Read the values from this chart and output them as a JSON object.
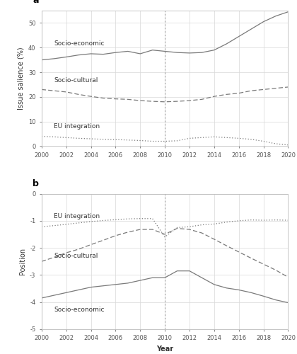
{
  "years": [
    2000,
    2001,
    2002,
    2003,
    2004,
    2005,
    2006,
    2007,
    2008,
    2009,
    2010,
    2011,
    2012,
    2013,
    2014,
    2015,
    2016,
    2017,
    2018,
    2019,
    2020
  ],
  "panel_a": {
    "socio_economic": [
      35.0,
      35.5,
      36.2,
      37.0,
      37.5,
      37.3,
      38.0,
      38.5,
      37.5,
      39.0,
      38.5,
      38.0,
      37.8,
      38.0,
      39.0,
      41.5,
      44.5,
      47.5,
      50.5,
      52.8,
      54.5
    ],
    "socio_cultural": [
      23.0,
      22.5,
      22.0,
      21.0,
      20.2,
      19.5,
      19.2,
      19.0,
      18.5,
      18.2,
      18.0,
      18.2,
      18.5,
      19.0,
      20.2,
      21.0,
      21.5,
      22.5,
      23.0,
      23.5,
      24.0
    ],
    "eu_integration": [
      4.0,
      3.8,
      3.5,
      3.2,
      3.0,
      2.8,
      2.7,
      2.5,
      2.3,
      2.0,
      2.0,
      2.2,
      3.2,
      3.5,
      3.8,
      3.5,
      3.2,
      2.8,
      2.0,
      1.0,
      0.5
    ]
  },
  "panel_b": {
    "socio_economic": [
      -3.85,
      -3.75,
      -3.65,
      -3.55,
      -3.45,
      -3.4,
      -3.35,
      -3.3,
      -3.2,
      -3.1,
      -3.1,
      -2.85,
      -2.85,
      -3.1,
      -3.35,
      -3.48,
      -3.55,
      -3.65,
      -3.78,
      -3.92,
      -4.02
    ],
    "socio_cultural": [
      -2.5,
      -2.35,
      -2.18,
      -2.05,
      -1.88,
      -1.72,
      -1.55,
      -1.42,
      -1.32,
      -1.32,
      -1.5,
      -1.28,
      -1.32,
      -1.45,
      -1.68,
      -1.92,
      -2.15,
      -2.38,
      -2.6,
      -2.82,
      -3.08
    ],
    "eu_integration": [
      -1.22,
      -1.18,
      -1.13,
      -1.08,
      -1.03,
      -0.99,
      -0.96,
      -0.93,
      -0.92,
      -0.92,
      -1.6,
      -1.25,
      -1.22,
      -1.15,
      -1.12,
      -1.05,
      -1.0,
      -0.97,
      -0.98,
      -0.97,
      -0.98
    ]
  },
  "vline_x": 2010,
  "panel_a_ylabel": "Issue salience (%)",
  "panel_b_ylabel": "Position",
  "panel_b_xlabel": "Year",
  "panel_a_ylim": [
    0,
    55
  ],
  "panel_b_ylim": [
    -5,
    0
  ],
  "panel_a_yticks": [
    0,
    10,
    20,
    30,
    40,
    50
  ],
  "panel_b_yticks": [
    -5,
    -4,
    -3,
    -2,
    -1,
    0
  ],
  "xticks": [
    2000,
    2002,
    2004,
    2006,
    2008,
    2010,
    2012,
    2014,
    2016,
    2018,
    2020
  ],
  "line_color": "#7a7a7a",
  "vline_color": "#888888",
  "grid_color": "#d8d8d8",
  "spine_color": "#bbbbbb",
  "tick_color": "#555555",
  "text_color": "#333333",
  "label_fontsize": 6.5,
  "tick_fontsize": 6.0,
  "axis_label_fontsize": 7.0,
  "panel_label_fontsize": 9
}
